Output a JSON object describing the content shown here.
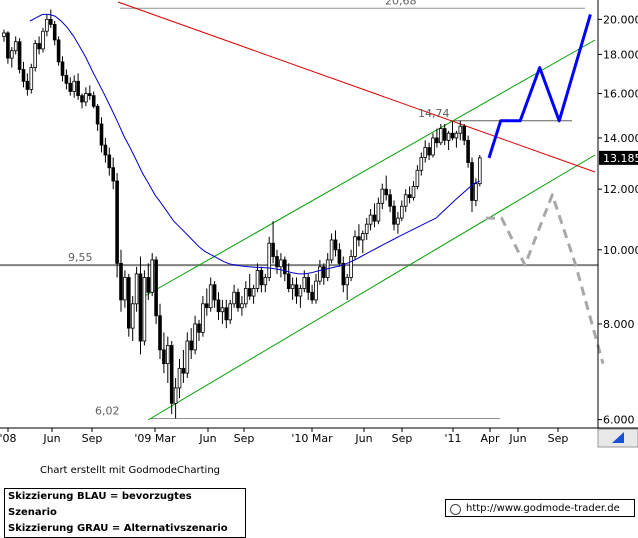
{
  "chart_data": {
    "type": "candlestick",
    "y_scale": "log",
    "ylim": [
      5.85,
      21.2
    ],
    "y_ticks": [
      {
        "value": 6.0,
        "label": "6.000"
      },
      {
        "value": 8.0,
        "label": "8.000"
      },
      {
        "value": 10.0,
        "label": "10.000"
      },
      {
        "value": 12.0,
        "label": "12.000"
      },
      {
        "value": 14.0,
        "label": "14.000"
      },
      {
        "value": 16.0,
        "label": "16.000"
      },
      {
        "value": 18.0,
        "label": "18.000"
      },
      {
        "value": 20.0,
        "label": "20.000"
      }
    ],
    "x_ticks": [
      "'08",
      "Jun",
      "Sep",
      "'09 Mar",
      "Jun",
      "Sep",
      "'10 Mar",
      "Jun",
      "Sep",
      "'11",
      "Apr",
      "Jun",
      "Sep"
    ],
    "last_price": {
      "value": 13.185,
      "label": "13.185"
    },
    "levels": [
      {
        "value": 20.68,
        "label": "20,68"
      },
      {
        "value": 14.74,
        "label": "14,74"
      },
      {
        "value": 9.55,
        "label": "9,55"
      },
      {
        "value": 6.02,
        "label": "6,02"
      }
    ],
    "candles": [
      [
        19.0,
        19.4,
        18.7,
        19.2
      ],
      [
        19.2,
        19.3,
        17.5,
        17.8
      ],
      [
        17.8,
        18.4,
        17.3,
        18.2
      ],
      [
        18.2,
        19.0,
        18.0,
        18.7
      ],
      [
        18.7,
        18.9,
        17.0,
        17.2
      ],
      [
        17.2,
        17.6,
        16.3,
        16.6
      ],
      [
        16.6,
        17.0,
        15.9,
        16.2
      ],
      [
        16.2,
        17.5,
        16.0,
        17.3
      ],
      [
        17.3,
        18.8,
        17.1,
        18.6
      ],
      [
        18.6,
        19.0,
        18.0,
        18.3
      ],
      [
        18.3,
        19.5,
        18.1,
        19.3
      ],
      [
        19.3,
        20.3,
        19.0,
        20.0
      ],
      [
        20.0,
        20.6,
        19.5,
        19.7
      ],
      [
        19.7,
        19.9,
        18.5,
        18.8
      ],
      [
        18.8,
        19.0,
        17.4,
        17.6
      ],
      [
        17.6,
        17.9,
        16.6,
        16.9
      ],
      [
        16.9,
        17.2,
        16.2,
        16.5
      ],
      [
        16.5,
        16.8,
        15.9,
        16.1
      ],
      [
        16.1,
        16.9,
        15.8,
        16.6
      ],
      [
        16.6,
        17.0,
        15.7,
        15.9
      ],
      [
        15.9,
        16.0,
        15.3,
        15.6
      ],
      [
        15.6,
        16.3,
        15.4,
        16.0
      ],
      [
        16.0,
        16.4,
        15.7,
        15.9
      ],
      [
        15.9,
        16.1,
        15.3,
        15.4
      ],
      [
        15.4,
        15.5,
        14.3,
        14.6
      ],
      [
        14.6,
        14.9,
        13.4,
        13.7
      ],
      [
        13.7,
        14.0,
        13.0,
        13.3
      ],
      [
        13.3,
        13.6,
        12.5,
        12.8
      ],
      [
        12.8,
        13.2,
        12.0,
        12.3
      ],
      [
        12.3,
        12.6,
        9.2,
        9.6
      ],
      [
        9.6,
        10.0,
        8.3,
        8.6
      ],
      [
        8.6,
        9.4,
        8.4,
        9.2
      ],
      [
        9.2,
        9.3,
        7.7,
        7.9
      ],
      [
        7.9,
        8.7,
        7.6,
        8.5
      ],
      [
        8.5,
        9.5,
        8.3,
        9.3
      ],
      [
        9.3,
        9.8,
        7.3,
        7.6
      ],
      [
        7.6,
        9.4,
        7.5,
        9.2
      ],
      [
        9.2,
        9.6,
        8.6,
        8.8
      ],
      [
        8.8,
        9.9,
        8.7,
        9.7
      ],
      [
        9.7,
        9.8,
        8.0,
        8.2
      ],
      [
        8.2,
        8.5,
        7.2,
        7.4
      ],
      [
        7.4,
        7.8,
        6.9,
        7.1
      ],
      [
        7.1,
        7.7,
        6.7,
        7.5
      ],
      [
        7.5,
        7.6,
        6.1,
        6.3
      ],
      [
        6.3,
        6.8,
        6.02,
        6.6
      ],
      [
        6.6,
        7.2,
        6.4,
        7.0
      ],
      [
        7.0,
        7.4,
        6.7,
        6.9
      ],
      [
        6.9,
        7.8,
        6.8,
        7.6
      ],
      [
        7.6,
        7.9,
        7.2,
        7.4
      ],
      [
        7.4,
        8.2,
        7.3,
        8.0
      ],
      [
        8.0,
        8.1,
        7.6,
        7.8
      ],
      [
        7.8,
        8.7,
        7.7,
        8.5
      ],
      [
        8.5,
        8.9,
        8.2,
        8.4
      ],
      [
        8.4,
        9.2,
        8.3,
        9.0
      ],
      [
        9.0,
        9.1,
        8.4,
        8.6
      ],
      [
        8.6,
        8.8,
        8.1,
        8.3
      ],
      [
        8.3,
        8.6,
        8.0,
        8.4
      ],
      [
        8.4,
        8.6,
        7.9,
        8.1
      ],
      [
        8.1,
        8.6,
        8.0,
        8.5
      ],
      [
        8.5,
        9.0,
        8.4,
        8.8
      ],
      [
        8.8,
        8.9,
        8.3,
        8.4
      ],
      [
        8.4,
        8.7,
        8.2,
        8.5
      ],
      [
        8.5,
        9.1,
        8.4,
        8.9
      ],
      [
        8.9,
        9.3,
        8.6,
        8.7
      ],
      [
        8.7,
        9.0,
        8.5,
        8.9
      ],
      [
        8.9,
        9.6,
        8.8,
        9.4
      ],
      [
        9.4,
        9.5,
        8.8,
        9.0
      ],
      [
        9.0,
        9.3,
        8.8,
        9.2
      ],
      [
        9.2,
        10.4,
        9.1,
        10.2
      ],
      [
        10.2,
        10.9,
        9.6,
        9.8
      ],
      [
        9.8,
        10.0,
        9.3,
        9.5
      ],
      [
        9.5,
        9.9,
        9.2,
        9.7
      ],
      [
        9.7,
        9.8,
        9.1,
        9.3
      ],
      [
        9.3,
        9.6,
        8.8,
        8.9
      ],
      [
        8.9,
        9.2,
        8.6,
        9.0
      ],
      [
        9.0,
        9.2,
        8.5,
        8.7
      ],
      [
        8.7,
        9.0,
        8.4,
        8.9
      ],
      [
        8.9,
        9.4,
        8.8,
        9.2
      ],
      [
        9.2,
        9.3,
        8.6,
        8.8
      ],
      [
        8.8,
        9.0,
        8.5,
        8.6
      ],
      [
        8.6,
        9.3,
        8.5,
        9.1
      ],
      [
        9.1,
        9.7,
        9.0,
        9.5
      ],
      [
        9.5,
        9.6,
        9.0,
        9.2
      ],
      [
        9.2,
        9.9,
        9.1,
        9.7
      ],
      [
        9.7,
        10.5,
        9.6,
        10.3
      ],
      [
        10.3,
        10.6,
        9.8,
        10.0
      ],
      [
        10.0,
        10.2,
        9.5,
        9.6
      ],
      [
        9.6,
        9.8,
        8.8,
        9.0
      ],
      [
        9.0,
        9.3,
        8.6,
        9.2
      ],
      [
        9.2,
        10.0,
        9.1,
        9.8
      ],
      [
        9.8,
        10.6,
        9.7,
        10.4
      ],
      [
        10.4,
        10.8,
        10.1,
        10.3
      ],
      [
        10.3,
        10.6,
        9.9,
        10.5
      ],
      [
        10.5,
        11.0,
        10.3,
        10.8
      ],
      [
        10.8,
        11.3,
        10.6,
        11.1
      ],
      [
        11.1,
        11.5,
        10.7,
        10.9
      ],
      [
        10.9,
        11.7,
        10.8,
        11.5
      ],
      [
        11.5,
        12.2,
        11.3,
        12.0
      ],
      [
        12.0,
        12.5,
        11.6,
        11.8
      ],
      [
        11.8,
        12.0,
        11.2,
        11.4
      ],
      [
        11.4,
        11.6,
        10.6,
        10.8
      ],
      [
        10.8,
        11.2,
        10.5,
        11.0
      ],
      [
        11.0,
        11.6,
        10.9,
        11.4
      ],
      [
        11.4,
        12.0,
        11.2,
        11.8
      ],
      [
        11.8,
        12.1,
        11.5,
        11.7
      ],
      [
        11.7,
        12.3,
        11.6,
        12.1
      ],
      [
        12.1,
        12.9,
        12.0,
        12.7
      ],
      [
        12.7,
        13.4,
        12.5,
        13.2
      ],
      [
        13.2,
        13.9,
        13.0,
        13.6
      ],
      [
        13.6,
        13.8,
        13.1,
        13.3
      ],
      [
        13.3,
        14.2,
        13.2,
        14.0
      ],
      [
        14.0,
        14.4,
        13.6,
        13.8
      ],
      [
        13.8,
        14.6,
        13.7,
        14.4
      ],
      [
        14.4,
        14.6,
        13.7,
        13.9
      ],
      [
        13.9,
        14.3,
        13.5,
        14.2
      ],
      [
        14.2,
        14.7,
        13.9,
        14.0
      ],
      [
        14.0,
        14.3,
        13.6,
        14.2
      ],
      [
        14.2,
        14.74,
        13.9,
        14.5
      ],
      [
        14.5,
        14.6,
        13.7,
        13.9
      ],
      [
        13.9,
        14.1,
        12.8,
        13.0
      ],
      [
        13.0,
        13.2,
        11.2,
        11.6
      ],
      [
        11.6,
        12.4,
        11.4,
        12.2
      ],
      [
        12.2,
        13.3,
        12.1,
        13.185
      ]
    ],
    "ma_line": [
      19.9,
      20.1,
      20.3,
      20.3,
      20.2,
      19.9,
      19.5,
      19.0,
      18.4,
      17.8,
      17.1,
      16.5,
      15.9,
      15.3,
      14.7,
      14.1,
      13.6,
      13.1,
      12.6,
      12.2,
      11.8,
      11.5,
      11.2,
      10.9,
      10.7,
      10.5,
      10.3,
      10.1,
      9.95,
      9.85,
      9.75,
      9.65,
      9.58,
      9.55,
      9.52,
      9.5,
      9.49,
      9.48,
      9.47,
      9.45,
      9.42,
      9.38,
      9.33,
      9.3,
      9.3,
      9.33,
      9.38,
      9.42,
      9.46,
      9.5,
      9.55,
      9.62,
      9.7,
      9.8,
      9.9,
      10.0,
      10.1,
      10.2,
      10.3,
      10.4,
      10.5,
      10.6,
      10.7,
      10.8,
      10.9,
      11.0,
      11.2,
      11.4,
      11.6,
      11.8,
      12.0,
      12.2,
      12.3
    ],
    "scenario_blue": [
      [
        13.185,
        0
      ],
      [
        14.74,
        3
      ],
      [
        14.74,
        8
      ],
      [
        17.3,
        13
      ],
      [
        14.74,
        18
      ],
      [
        20.3,
        26
      ]
    ],
    "scenario_gray": [
      [
        11.0,
        0
      ],
      [
        11.0,
        4
      ],
      [
        9.55,
        10
      ],
      [
        11.8,
        17
      ],
      [
        9.55,
        23
      ],
      [
        7.1,
        30
      ]
    ],
    "legend": [
      "Skizzierung BLAU = bevorzugtes Szenario",
      "Skizzierung GRAU = Alternativszenario"
    ]
  },
  "footer": {
    "credit": "Chart erstellt mit GodmodeCharting",
    "url": "http://www.godmode-trader.de"
  },
  "colors": {
    "price_bars": "#000000",
    "moving_average": "#0000cc",
    "trend_channel": "#00a000",
    "resistance_trend": "#e00000",
    "support_level": "#808080",
    "scenario_blue": "#0000ff",
    "scenario_gray": "#a8a8a8",
    "last_price_tag": "#000000"
  }
}
